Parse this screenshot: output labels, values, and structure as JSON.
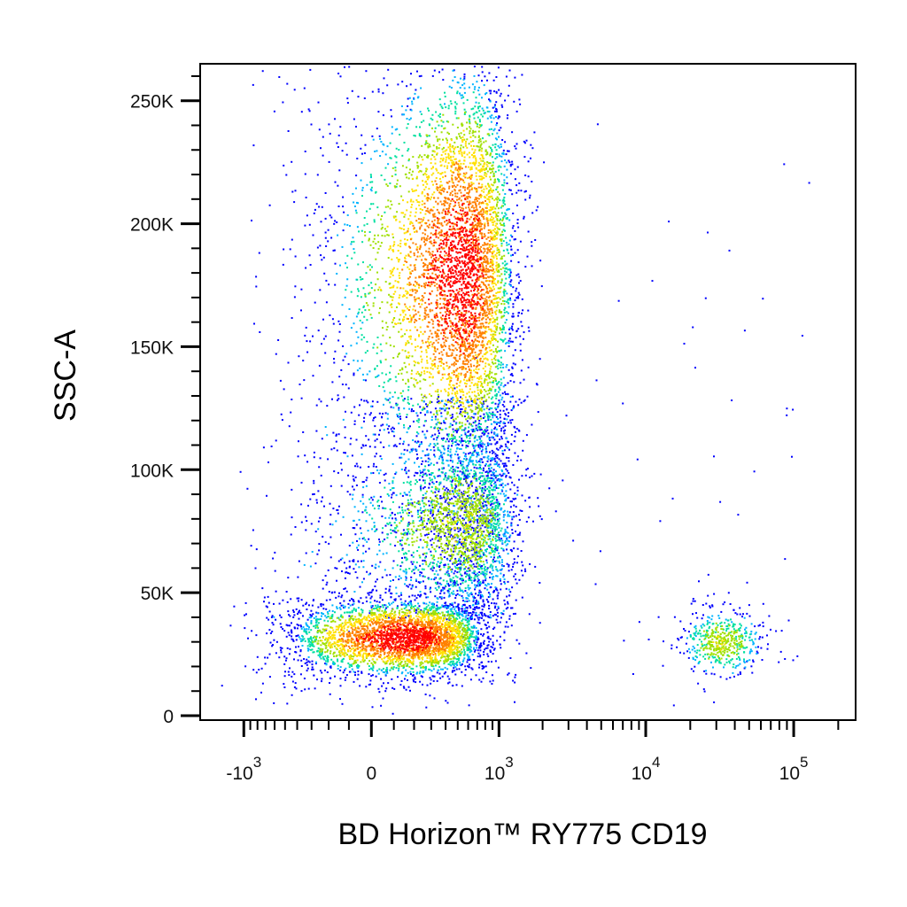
{
  "chart_data": {
    "type": "scatter",
    "subtype": "flow-cytometry-density-dot-plot",
    "title": "",
    "xlabel": "BD Horizon™ RY775 CD19",
    "ylabel": "SSC-A",
    "x_scale": "biexponential (linear near 0, log above ~10^3)",
    "y_scale": "linear",
    "ylim": [
      0,
      262144
    ],
    "xlim": [
      -2000,
      262144
    ],
    "y_ticks": [
      {
        "value": 0,
        "label": "0"
      },
      {
        "value": 50000,
        "label": "50K"
      },
      {
        "value": 100000,
        "label": "100K"
      },
      {
        "value": 150000,
        "label": "150K"
      },
      {
        "value": 200000,
        "label": "200K"
      },
      {
        "value": 250000,
        "label": "250K"
      }
    ],
    "x_ticks": [
      {
        "value": -1000,
        "base": "-10",
        "exp": "3"
      },
      {
        "value": 0,
        "base": "0",
        "exp": ""
      },
      {
        "value": 1000,
        "base": "10",
        "exp": "3"
      },
      {
        "value": 10000,
        "base": "10",
        "exp": "4"
      },
      {
        "value": 100000,
        "base": "10",
        "exp": "5"
      }
    ],
    "color_scale": [
      "#0000ff",
      "#00b4ff",
      "#00e0a0",
      "#a0e000",
      "#ffe000",
      "#ff8000",
      "#ff0000"
    ],
    "grid": false,
    "legend": "none",
    "populations": [
      {
        "name": "",
        "x_center": 150,
        "y_center": 32000,
        "x_spread": 260,
        "y_spread": 7000,
        "count": 3600,
        "peak_color": "red"
      },
      {
        "name": "",
        "x_center": 520,
        "y_center": 180000,
        "x_spread": 320,
        "y_spread": 38000,
        "count": 5200,
        "peak_color": "red"
      },
      {
        "name": "",
        "x_center": 520,
        "y_center": 78000,
        "x_spread": 330,
        "y_spread": 16000,
        "count": 1800,
        "peak_color": "cyan"
      },
      {
        "name": "",
        "x_center": 32000,
        "y_center": 30000,
        "x_spread": 0.12,
        "y_spread": 6000,
        "count": 520,
        "peak_color": "cyan"
      }
    ]
  }
}
